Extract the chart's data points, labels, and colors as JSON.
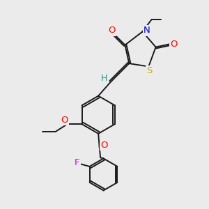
{
  "bg_color": "#ebebeb",
  "bond_color": "#1a1a1a",
  "bond_width": 1.4,
  "atom_colors": {
    "O": "#ff0000",
    "N": "#0000cc",
    "S": "#ccaa00",
    "F": "#dd00dd",
    "H": "#2a9090",
    "C": "#1a1a1a"
  },
  "font_size": 9,
  "figsize": [
    3.0,
    3.0
  ],
  "dpi": 100
}
